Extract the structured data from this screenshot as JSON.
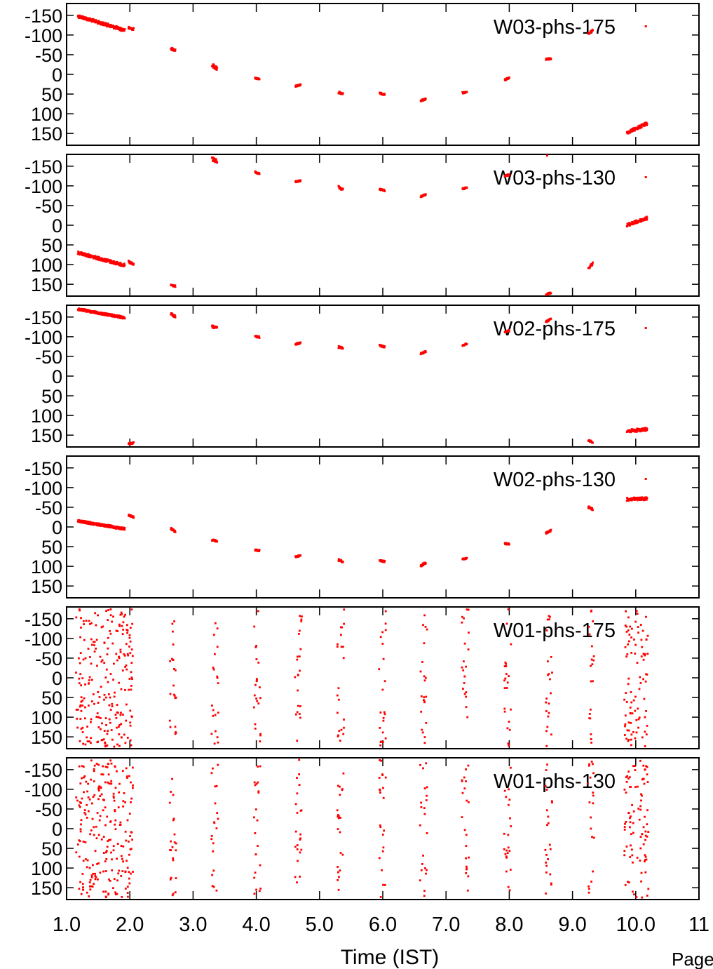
{
  "chart_data": {
    "type": "scatter",
    "xlabel": "Time (IST)",
    "page_label": "Page",
    "x_ticks": [
      "1.0",
      "2.0",
      "3.0",
      "4.0",
      "5.0",
      "6.0",
      "7.0",
      "8.0",
      "9.0",
      "10.0",
      "11"
    ],
    "x_tick_values": [
      1,
      2,
      3,
      4,
      5,
      6,
      7,
      8,
      9,
      10,
      11
    ],
    "xlim": [
      1,
      11
    ],
    "y_ticks": [
      "-150",
      "-100",
      "-50",
      "0",
      "50",
      "100",
      "150"
    ],
    "y_tick_values": [
      -150,
      -100,
      -50,
      0,
      50,
      100,
      150
    ],
    "ylim": [
      -180,
      180
    ],
    "y_inverted": true,
    "point_color": "#ff0000",
    "panels": [
      {
        "name": "W03-phs-175",
        "mode": "track",
        "segments": [
          {
            "x0": 1.18,
            "x1": 1.92,
            "y0": -148,
            "y1": -112,
            "jitter": 4
          },
          {
            "x0": 1.98,
            "x1": 2.06,
            "y0": -118,
            "y1": -115,
            "jitter": 3
          },
          {
            "x0": 2.65,
            "x1": 2.72,
            "y0": -65,
            "y1": -62,
            "jitter": 3
          },
          {
            "x0": 3.3,
            "x1": 3.38,
            "y0": -23,
            "y1": -15,
            "jitter": 5
          },
          {
            "x0": 3.98,
            "x1": 4.05,
            "y0": 9,
            "y1": 13,
            "jitter": 2
          },
          {
            "x0": 4.62,
            "x1": 4.7,
            "y0": 30,
            "y1": 27,
            "jitter": 2
          },
          {
            "x0": 5.3,
            "x1": 5.37,
            "y0": 45,
            "y1": 49,
            "jitter": 3
          },
          {
            "x0": 5.95,
            "x1": 6.03,
            "y0": 48,
            "y1": 51,
            "jitter": 2
          },
          {
            "x0": 6.6,
            "x1": 6.68,
            "y0": 67,
            "y1": 62,
            "jitter": 2
          },
          {
            "x0": 7.26,
            "x1": 7.33,
            "y0": 47,
            "y1": 46,
            "jitter": 2
          },
          {
            "x0": 7.93,
            "x1": 8.0,
            "y0": 14,
            "y1": 9,
            "jitter": 2
          },
          {
            "x0": 8.58,
            "x1": 8.66,
            "y0": -38,
            "y1": -40,
            "jitter": 2
          },
          {
            "x0": 9.25,
            "x1": 9.32,
            "y0": -102,
            "y1": -112,
            "jitter": 3
          },
          {
            "x0": 9.86,
            "x1": 10.18,
            "y0": 148,
            "y1": 125,
            "jitter": 4
          },
          {
            "x0": 10.16,
            "x1": 10.16,
            "y0": -122,
            "y1": -122,
            "jitter": 0
          }
        ]
      },
      {
        "name": "W03-phs-130",
        "mode": "track",
        "segments": [
          {
            "x0": 1.18,
            "x1": 1.92,
            "y0": 70,
            "y1": 102,
            "jitter": 4
          },
          {
            "x0": 1.98,
            "x1": 2.06,
            "y0": 93,
            "y1": 100,
            "jitter": 3
          },
          {
            "x0": 2.65,
            "x1": 2.72,
            "y0": 152,
            "y1": 155,
            "jitter": 2
          },
          {
            "x0": 3.3,
            "x1": 3.38,
            "y0": -168,
            "y1": -162,
            "jitter": 5
          },
          {
            "x0": 3.98,
            "x1": 4.05,
            "y0": -135,
            "y1": -130,
            "jitter": 2
          },
          {
            "x0": 4.62,
            "x1": 4.7,
            "y0": -110,
            "y1": -113,
            "jitter": 2
          },
          {
            "x0": 5.3,
            "x1": 5.37,
            "y0": -97,
            "y1": -90,
            "jitter": 3
          },
          {
            "x0": 5.95,
            "x1": 6.03,
            "y0": -92,
            "y1": -88,
            "jitter": 2
          },
          {
            "x0": 6.6,
            "x1": 6.68,
            "y0": -73,
            "y1": -78,
            "jitter": 2
          },
          {
            "x0": 7.26,
            "x1": 7.33,
            "y0": -92,
            "y1": -95,
            "jitter": 2
          },
          {
            "x0": 7.93,
            "x1": 8.0,
            "y0": -125,
            "y1": -128,
            "jitter": 2
          },
          {
            "x0": 8.58,
            "x1": 8.66,
            "y0": 175,
            "y1": 172,
            "jitter": 2
          },
          {
            "x0": 8.6,
            "x1": 8.6,
            "y0": -177,
            "y1": -177,
            "jitter": 0
          },
          {
            "x0": 9.25,
            "x1": 9.32,
            "y0": 110,
            "y1": 97,
            "jitter": 3
          },
          {
            "x0": 9.86,
            "x1": 10.18,
            "y0": 0,
            "y1": -18,
            "jitter": 4
          },
          {
            "x0": 10.16,
            "x1": 10.16,
            "y0": -122,
            "y1": -122,
            "jitter": 0
          }
        ]
      },
      {
        "name": "W02-phs-175",
        "mode": "track",
        "segments": [
          {
            "x0": 1.18,
            "x1": 1.92,
            "y0": -170,
            "y1": -148,
            "jitter": 3
          },
          {
            "x0": 1.98,
            "x1": 2.06,
            "y0": 172,
            "y1": 170,
            "jitter": 2
          },
          {
            "x0": 2.65,
            "x1": 2.72,
            "y0": -158,
            "y1": -150,
            "jitter": 3
          },
          {
            "x0": 3.3,
            "x1": 3.38,
            "y0": -126,
            "y1": -122,
            "jitter": 3
          },
          {
            "x0": 3.98,
            "x1": 4.05,
            "y0": -101,
            "y1": -99,
            "jitter": 2
          },
          {
            "x0": 4.62,
            "x1": 4.7,
            "y0": -81,
            "y1": -85,
            "jitter": 2
          },
          {
            "x0": 5.3,
            "x1": 5.37,
            "y0": -74,
            "y1": -70,
            "jitter": 3
          },
          {
            "x0": 5.95,
            "x1": 6.03,
            "y0": -78,
            "y1": -74,
            "jitter": 2
          },
          {
            "x0": 6.6,
            "x1": 6.68,
            "y0": -57,
            "y1": -62,
            "jitter": 2
          },
          {
            "x0": 7.26,
            "x1": 7.33,
            "y0": -78,
            "y1": -82,
            "jitter": 2
          },
          {
            "x0": 7.93,
            "x1": 8.0,
            "y0": -112,
            "y1": -116,
            "jitter": 2
          },
          {
            "x0": 8.58,
            "x1": 8.66,
            "y0": -138,
            "y1": -145,
            "jitter": 2
          },
          {
            "x0": 9.25,
            "x1": 9.32,
            "y0": 163,
            "y1": 168,
            "jitter": 2
          },
          {
            "x0": 9.86,
            "x1": 10.18,
            "y0": 140,
            "y1": 135,
            "jitter": 4
          },
          {
            "x0": 10.16,
            "x1": 10.16,
            "y0": -122,
            "y1": -122,
            "jitter": 0
          }
        ]
      },
      {
        "name": "W02-phs-130",
        "mode": "track",
        "segments": [
          {
            "x0": 1.18,
            "x1": 1.92,
            "y0": -15,
            "y1": 5,
            "jitter": 3
          },
          {
            "x0": 1.98,
            "x1": 2.06,
            "y0": -30,
            "y1": -25,
            "jitter": 2
          },
          {
            "x0": 2.65,
            "x1": 2.72,
            "y0": 5,
            "y1": 12,
            "jitter": 3
          },
          {
            "x0": 3.3,
            "x1": 3.38,
            "y0": 33,
            "y1": 38,
            "jitter": 3
          },
          {
            "x0": 3.98,
            "x1": 4.05,
            "y0": 58,
            "y1": 60,
            "jitter": 2
          },
          {
            "x0": 4.62,
            "x1": 4.7,
            "y0": 76,
            "y1": 72,
            "jitter": 2
          },
          {
            "x0": 5.3,
            "x1": 5.37,
            "y0": 84,
            "y1": 88,
            "jitter": 3
          },
          {
            "x0": 5.95,
            "x1": 6.03,
            "y0": 85,
            "y1": 88,
            "jitter": 2
          },
          {
            "x0": 6.6,
            "x1": 6.68,
            "y0": 98,
            "y1": 92,
            "jitter": 3
          },
          {
            "x0": 7.26,
            "x1": 7.33,
            "y0": 82,
            "y1": 80,
            "jitter": 2
          },
          {
            "x0": 7.93,
            "x1": 8.0,
            "y0": 42,
            "y1": 43,
            "jitter": 2
          },
          {
            "x0": 8.58,
            "x1": 8.66,
            "y0": 16,
            "y1": 9,
            "jitter": 2
          },
          {
            "x0": 9.25,
            "x1": 9.32,
            "y0": -50,
            "y1": -45,
            "jitter": 3
          },
          {
            "x0": 9.86,
            "x1": 10.18,
            "y0": -70,
            "y1": -72,
            "jitter": 4
          },
          {
            "x0": 10.16,
            "x1": 10.16,
            "y0": -122,
            "y1": -122,
            "jitter": 0
          }
        ]
      },
      {
        "name": "W01-phs-175",
        "mode": "noise",
        "groups": [
          {
            "x0": 1.15,
            "x1": 2.05,
            "n": 230
          },
          {
            "x0": 2.63,
            "x1": 2.74,
            "n": 22
          },
          {
            "x0": 3.29,
            "x1": 3.4,
            "n": 20
          },
          {
            "x0": 3.96,
            "x1": 4.07,
            "n": 22
          },
          {
            "x0": 4.61,
            "x1": 4.72,
            "n": 22
          },
          {
            "x0": 5.28,
            "x1": 5.39,
            "n": 22
          },
          {
            "x0": 5.94,
            "x1": 6.05,
            "n": 22
          },
          {
            "x0": 6.59,
            "x1": 6.7,
            "n": 22
          },
          {
            "x0": 7.25,
            "x1": 7.36,
            "n": 22
          },
          {
            "x0": 7.92,
            "x1": 8.03,
            "n": 22
          },
          {
            "x0": 8.57,
            "x1": 8.68,
            "n": 22
          },
          {
            "x0": 9.24,
            "x1": 9.34,
            "n": 20
          },
          {
            "x0": 9.82,
            "x1": 10.2,
            "n": 90
          }
        ]
      },
      {
        "name": "W01-phs-130",
        "mode": "noise",
        "groups": [
          {
            "x0": 1.15,
            "x1": 2.05,
            "n": 230
          },
          {
            "x0": 2.63,
            "x1": 2.74,
            "n": 22
          },
          {
            "x0": 3.29,
            "x1": 3.4,
            "n": 20
          },
          {
            "x0": 3.96,
            "x1": 4.07,
            "n": 22
          },
          {
            "x0": 4.61,
            "x1": 4.72,
            "n": 22
          },
          {
            "x0": 5.28,
            "x1": 5.39,
            "n": 22
          },
          {
            "x0": 5.94,
            "x1": 6.05,
            "n": 22
          },
          {
            "x0": 6.59,
            "x1": 6.7,
            "n": 22
          },
          {
            "x0": 7.25,
            "x1": 7.36,
            "n": 22
          },
          {
            "x0": 7.92,
            "x1": 8.03,
            "n": 22
          },
          {
            "x0": 8.57,
            "x1": 8.68,
            "n": 22
          },
          {
            "x0": 9.24,
            "x1": 9.34,
            "n": 20
          },
          {
            "x0": 9.82,
            "x1": 10.2,
            "n": 90
          }
        ]
      }
    ]
  }
}
